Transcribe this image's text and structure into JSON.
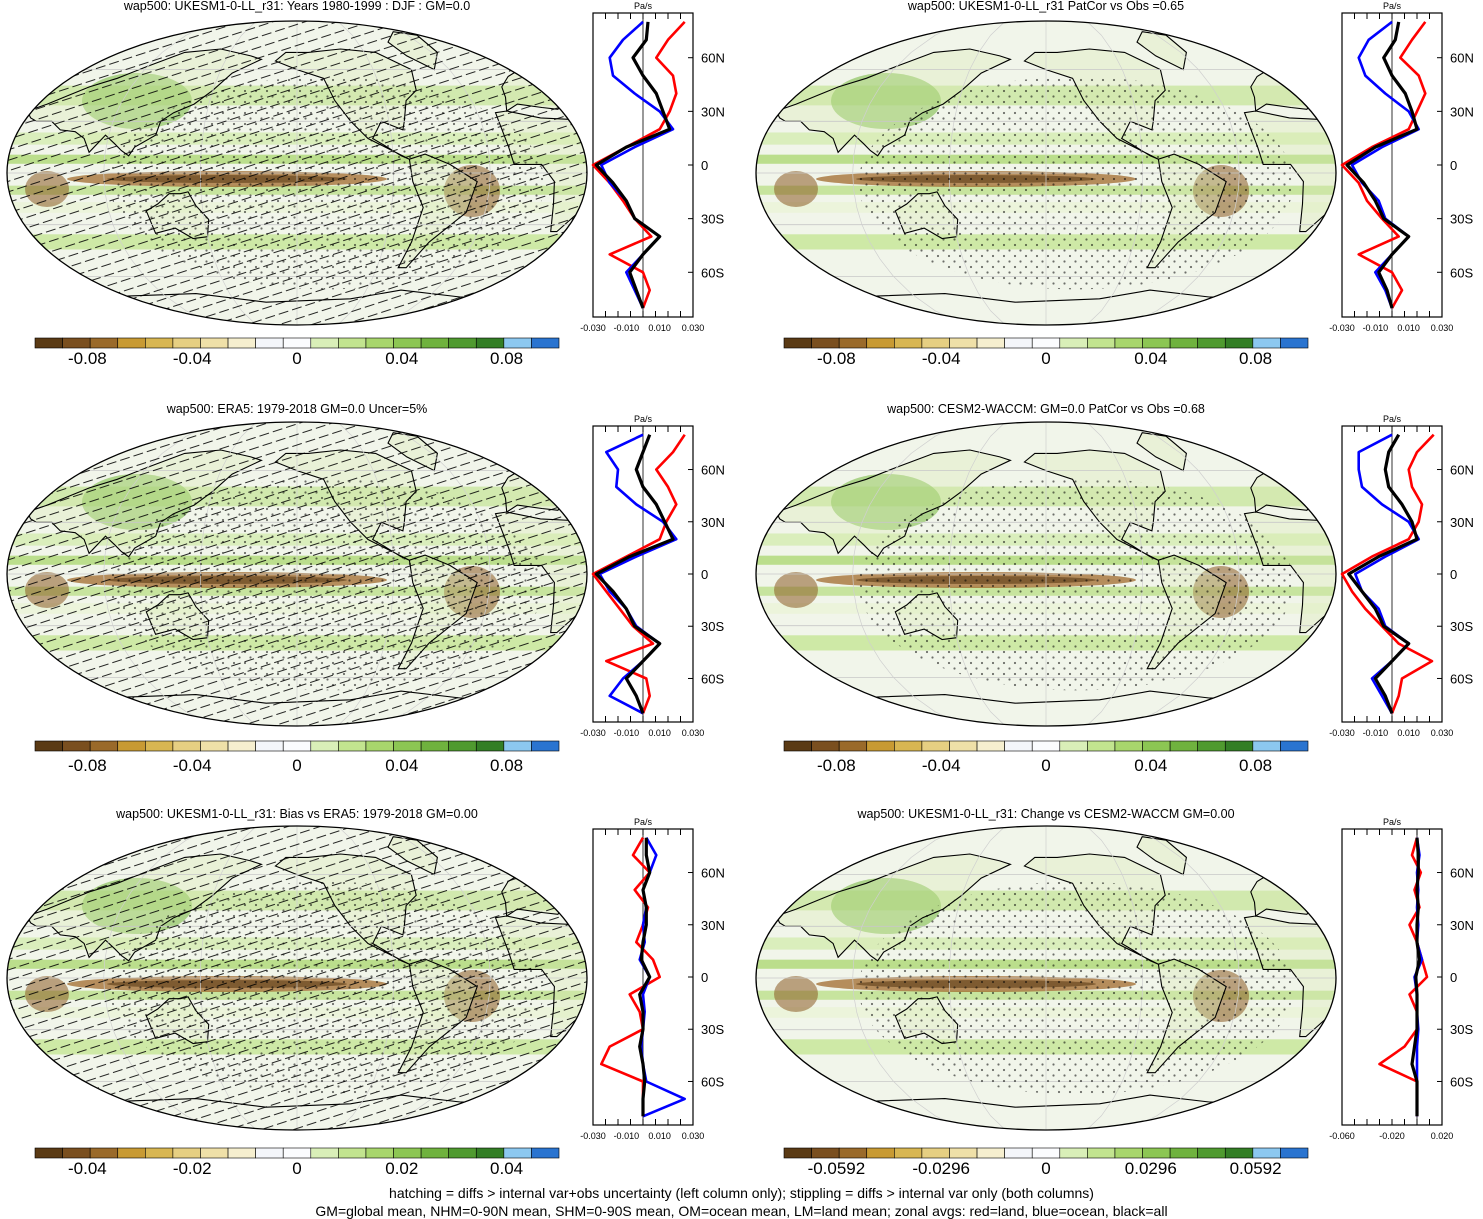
{
  "footer": {
    "line1": "hatching = diffs > internal var+obs uncertainty (left column only); stippling = diffs > internal var only (both columns)",
    "line2": "GM=global mean, NHM=0-90N mean, SHM=0-90S mean, OM=ocean mean, LM=land mean; zonal avgs: red=land, blue=ocean, black=all"
  },
  "chart_data": [
    {
      "type": "heatmap",
      "title": "wap500: UKESM1-0-LL_r31: Years 1980-1999 : DJF : GM=0.0",
      "hatching": true,
      "colorbar_ticks": [
        "-0.08",
        "-0.04",
        "0",
        "0.04",
        "0.08"
      ],
      "colorbar_range": [
        -0.1,
        0.1
      ],
      "zonal_mean": {
        "unit_label": "Pa/s",
        "x_ticks": [
          "-0.030",
          "-0.010",
          "0.010",
          "0.030"
        ],
        "xlim": [
          -0.03,
          0.03
        ],
        "lat_ticks": [
          "60N",
          "30N",
          "0",
          "30S",
          "60S"
        ],
        "lat_values": [
          60,
          30,
          0,
          -30,
          -60
        ],
        "lats": [
          80,
          70,
          60,
          50,
          40,
          30,
          20,
          10,
          0,
          -10,
          -20,
          -30,
          -40,
          -50,
          -60,
          -70,
          -80
        ],
        "series": [
          {
            "name": "land",
            "color": "#ff0000",
            "values": [
              0.025,
              0.015,
              0.008,
              0.018,
              0.02,
              0.016,
              0.01,
              -0.01,
              -0.03,
              -0.02,
              -0.012,
              -0.005,
              0.005,
              -0.02,
              0.0,
              0.004,
              0.0
            ]
          },
          {
            "name": "ocean",
            "color": "#0000ff",
            "values": [
              0.0,
              -0.012,
              -0.02,
              -0.018,
              -0.005,
              0.01,
              0.018,
              -0.005,
              -0.025,
              -0.02,
              -0.01,
              -0.005,
              0.01,
              0.0,
              -0.01,
              -0.005,
              0.0
            ]
          },
          {
            "name": "all",
            "color": "#000000",
            "values": [
              0.003,
              0.002,
              -0.006,
              0.0,
              0.008,
              0.012,
              0.016,
              -0.01,
              -0.028,
              -0.018,
              -0.01,
              -0.005,
              0.01,
              0.0,
              -0.008,
              -0.004,
              0.0
            ]
          }
        ]
      }
    },
    {
      "type": "heatmap",
      "title": "wap500: UKESM1-0-LL_r31 PatCor vs Obs =0.65",
      "hatching": false,
      "colorbar_ticks": [
        "-0.08",
        "-0.04",
        "0",
        "0.04",
        "0.08"
      ],
      "colorbar_range": [
        -0.1,
        0.1
      ],
      "zonal_mean": {
        "unit_label": "Pa/s",
        "x_ticks": [
          "-0.030",
          "-0.010",
          "0.010",
          "0.030"
        ],
        "xlim": [
          -0.03,
          0.03
        ],
        "lat_ticks": [
          "60N",
          "30N",
          "0",
          "30S",
          "60S"
        ],
        "lat_values": [
          60,
          30,
          0,
          -30,
          -60
        ],
        "lats": [
          80,
          70,
          60,
          50,
          40,
          30,
          20,
          10,
          0,
          -10,
          -20,
          -30,
          -40,
          -50,
          -60,
          -70,
          -80
        ],
        "series": [
          {
            "name": "land",
            "color": "#ff0000",
            "values": [
              0.02,
              0.012,
              0.005,
              0.016,
              0.02,
              0.015,
              0.01,
              -0.012,
              -0.03,
              -0.02,
              -0.015,
              -0.006,
              0.004,
              -0.02,
              0.0,
              0.006,
              0.0
            ]
          },
          {
            "name": "ocean",
            "color": "#0000ff",
            "values": [
              0.0,
              -0.014,
              -0.02,
              -0.016,
              -0.004,
              0.01,
              0.016,
              -0.006,
              -0.024,
              -0.018,
              -0.008,
              -0.004,
              0.01,
              0.0,
              -0.01,
              -0.004,
              0.0
            ]
          },
          {
            "name": "all",
            "color": "#000000",
            "values": [
              0.004,
              0.002,
              -0.005,
              0.0,
              0.008,
              0.012,
              0.015,
              -0.01,
              -0.027,
              -0.017,
              -0.01,
              -0.005,
              0.01,
              0.0,
              -0.008,
              -0.003,
              0.0
            ]
          }
        ]
      }
    },
    {
      "type": "heatmap",
      "title": "wap500: ERA5: 1979-2018 GM=0.0 Uncer=5%",
      "hatching": true,
      "colorbar_ticks": [
        "-0.08",
        "-0.04",
        "0",
        "0.04",
        "0.08"
      ],
      "colorbar_range": [
        -0.1,
        0.1
      ],
      "zonal_mean": {
        "unit_label": "Pa/s",
        "x_ticks": [
          "-0.030",
          "-0.010",
          "0.010",
          "0.030"
        ],
        "xlim": [
          -0.03,
          0.03
        ],
        "lat_ticks": [
          "60N",
          "30N",
          "0",
          "30S",
          "60S"
        ],
        "lat_values": [
          60,
          30,
          0,
          -30,
          -60
        ],
        "lats": [
          80,
          70,
          60,
          50,
          40,
          30,
          20,
          10,
          0,
          -10,
          -20,
          -30,
          -40,
          -50,
          -60,
          -70,
          -80
        ],
        "series": [
          {
            "name": "land",
            "color": "#ff0000",
            "values": [
              0.025,
              0.018,
              0.008,
              0.015,
              0.02,
              0.014,
              0.01,
              -0.01,
              -0.03,
              -0.022,
              -0.014,
              -0.006,
              0.006,
              -0.022,
              0.002,
              0.004,
              0.0
            ]
          },
          {
            "name": "ocean",
            "color": "#0000ff",
            "values": [
              0.0,
              -0.022,
              -0.015,
              -0.016,
              -0.004,
              0.012,
              0.02,
              -0.004,
              -0.026,
              -0.02,
              -0.01,
              -0.004,
              0.01,
              0.0,
              -0.012,
              -0.02,
              0.0
            ]
          },
          {
            "name": "all",
            "color": "#000000",
            "values": [
              0.004,
              0.0,
              -0.004,
              0.0,
              0.008,
              0.013,
              0.018,
              -0.008,
              -0.028,
              -0.018,
              -0.01,
              -0.005,
              0.01,
              0.0,
              -0.01,
              -0.004,
              0.0
            ]
          }
        ]
      }
    },
    {
      "type": "heatmap",
      "title": "wap500: CESM2-WACCM: GM=0.0 PatCor vs Obs =0.68",
      "hatching": false,
      "colorbar_ticks": [
        "-0.08",
        "-0.04",
        "0",
        "0.04",
        "0.08"
      ],
      "colorbar_range": [
        -0.1,
        0.1
      ],
      "zonal_mean": {
        "unit_label": "Pa/s",
        "x_ticks": [
          "-0.030",
          "-0.010",
          "0.010",
          "0.030"
        ],
        "xlim": [
          -0.03,
          0.03
        ],
        "lat_ticks": [
          "60N",
          "30N",
          "0",
          "30S",
          "60S"
        ],
        "lat_values": [
          60,
          30,
          0,
          -30,
          -60
        ],
        "lats": [
          80,
          70,
          60,
          50,
          40,
          30,
          20,
          10,
          0,
          -10,
          -20,
          -30,
          -40,
          -50,
          -60,
          -70,
          -80
        ],
        "series": [
          {
            "name": "land",
            "color": "#ff0000",
            "values": [
              0.025,
              0.015,
              0.01,
              0.012,
              0.018,
              0.016,
              0.01,
              -0.012,
              -0.03,
              -0.024,
              -0.016,
              -0.006,
              0.004,
              0.024,
              0.006,
              0.004,
              0.0
            ]
          },
          {
            "name": "ocean",
            "color": "#0000ff",
            "values": [
              0.0,
              -0.02,
              -0.02,
              -0.018,
              -0.006,
              0.01,
              0.016,
              -0.004,
              -0.022,
              -0.018,
              -0.008,
              -0.004,
              0.01,
              0.0,
              -0.012,
              -0.006,
              0.0
            ]
          },
          {
            "name": "all",
            "color": "#000000",
            "values": [
              0.004,
              -0.002,
              -0.004,
              -0.002,
              0.006,
              0.012,
              0.015,
              -0.008,
              -0.026,
              -0.018,
              -0.01,
              -0.005,
              0.01,
              0.0,
              -0.01,
              -0.004,
              0.0
            ]
          }
        ]
      }
    },
    {
      "type": "heatmap",
      "title": "wap500: UKESM1-0-LL_r31: Bias vs ERA5: 1979-2018 GM=0.00",
      "hatching": true,
      "colorbar_ticks": [
        "-0.04",
        "-0.02",
        "0",
        "0.02",
        "0.04"
      ],
      "colorbar_range": [
        -0.05,
        0.05
      ],
      "zonal_mean": {
        "unit_label": "Pa/s",
        "x_ticks": [
          "-0.030",
          "-0.010",
          "0.010",
          "0.030"
        ],
        "xlim": [
          -0.03,
          0.03
        ],
        "lat_ticks": [
          "60N",
          "30N",
          "0",
          "30S",
          "60S"
        ],
        "lat_values": [
          60,
          30,
          0,
          -30,
          -60
        ],
        "lats": [
          80,
          70,
          60,
          50,
          40,
          30,
          20,
          10,
          0,
          -10,
          -20,
          -30,
          -40,
          -50,
          -60,
          -70,
          -80
        ],
        "series": [
          {
            "name": "land",
            "color": "#ff0000",
            "values": [
              0.0,
              -0.006,
              0.004,
              -0.005,
              0.003,
              0.0,
              -0.004,
              0.006,
              0.01,
              -0.008,
              -0.002,
              0.0,
              -0.02,
              -0.025,
              0.0,
              0.0,
              0.0
            ]
          },
          {
            "name": "ocean",
            "color": "#0000ff",
            "values": [
              0.002,
              0.008,
              0.004,
              0.0,
              0.002,
              0.0,
              0.001,
              -0.002,
              0.004,
              0.0,
              0.001,
              0.0,
              -0.001,
              0.0,
              0.002,
              0.025,
              0.0
            ]
          },
          {
            "name": "all",
            "color": "#000000",
            "values": [
              0.002,
              0.002,
              0.004,
              0.0,
              0.002,
              0.002,
              0.0,
              -0.001,
              0.004,
              -0.002,
              0.0,
              0.0,
              -0.002,
              0.0,
              0.001,
              0.0,
              0.0
            ]
          }
        ]
      }
    },
    {
      "type": "heatmap",
      "title": "wap500: UKESM1-0-LL_r31: Change vs CESM2-WACCM GM=0.00",
      "hatching": false,
      "colorbar_ticks": [
        "-0.0592",
        "-0.0296",
        "0",
        "0.0296",
        "0.0592"
      ],
      "colorbar_range": [
        -0.074,
        0.074
      ],
      "zonal_mean": {
        "unit_label": "Pa/s",
        "x_ticks": [
          "-0.060",
          "-0.020",
          "0.020"
        ],
        "xlim": [
          -0.06,
          0.02
        ],
        "lat_ticks": [
          "60N",
          "30N",
          "0",
          "30S",
          "60S"
        ],
        "lat_values": [
          60,
          30,
          0,
          -30,
          -60
        ],
        "lats": [
          80,
          70,
          60,
          50,
          40,
          30,
          20,
          10,
          0,
          -10,
          -20,
          -30,
          -40,
          -50,
          -60,
          -70,
          -80
        ],
        "series": [
          {
            "name": "land",
            "color": "#ff0000",
            "values": [
              0.0,
              -0.004,
              0.003,
              -0.002,
              0.002,
              -0.006,
              0.0,
              0.004,
              0.008,
              -0.006,
              0.0,
              0.0,
              -0.01,
              -0.03,
              0.0,
              0.0,
              0.0
            ]
          },
          {
            "name": "ocean",
            "color": "#0000ff",
            "values": [
              0.0,
              0.002,
              0.0,
              0.001,
              0.0,
              0.001,
              0.0,
              0.004,
              -0.002,
              0.0,
              0.0,
              0.001,
              0.0,
              0.0,
              0.0,
              0.0,
              0.0
            ]
          },
          {
            "name": "all",
            "color": "#000000",
            "values": [
              0.0,
              0.001,
              0.001,
              0.0,
              0.001,
              0.0,
              0.0,
              0.002,
              -0.001,
              0.0,
              0.0,
              0.0,
              -0.002,
              -0.004,
              0.0,
              0.0,
              0.0
            ]
          }
        ]
      }
    }
  ]
}
